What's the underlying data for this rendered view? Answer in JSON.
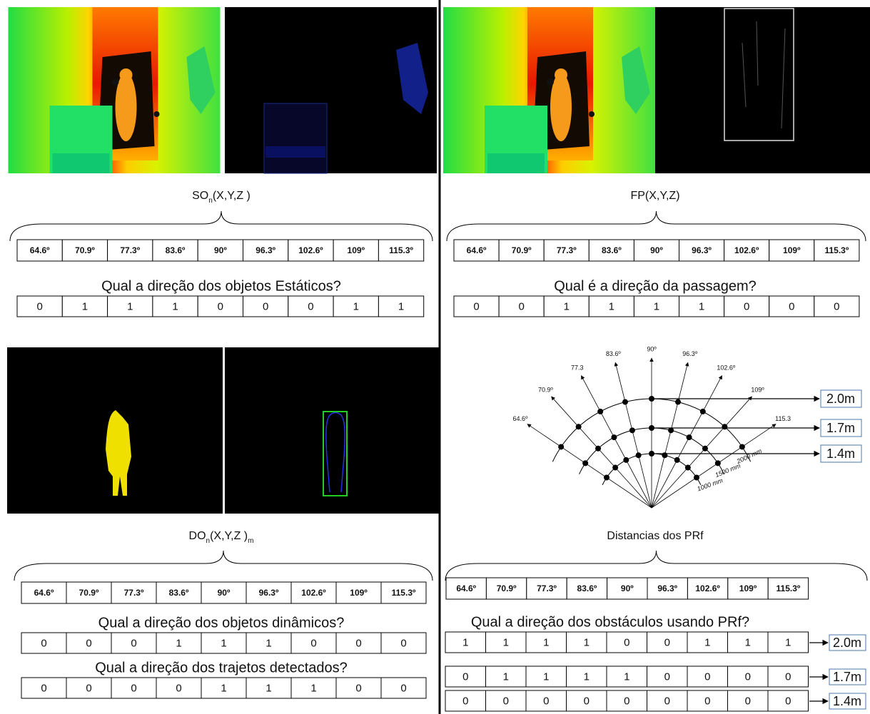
{
  "angles": [
    "64.6º",
    "70.9º",
    "77.3º",
    "83.6º",
    "90º",
    "96.3º",
    "102.6º",
    "109º",
    "115.3º"
  ],
  "top_left": {
    "label": {
      "main": "SO",
      "sub": "n",
      "args": "(X,Y,Z )"
    },
    "question": "Qual a direção dos objetos Estáticos?",
    "answers": [
      0,
      1,
      1,
      1,
      0,
      0,
      0,
      1,
      1
    ]
  },
  "top_right": {
    "label": "FP(X,Y,Z)",
    "question": "Qual  é a direção da passagem?",
    "answers": [
      0,
      0,
      1,
      1,
      1,
      1,
      0,
      0,
      0
    ]
  },
  "bottom_left": {
    "label": {
      "main": "DO",
      "sub": "n",
      "args": "(X,Y,Z )",
      "sub2": "m"
    },
    "questions": [
      {
        "text": "Qual a direção dos objetos dinâmicos?",
        "answers": [
          0,
          0,
          0,
          1,
          1,
          1,
          0,
          0,
          0
        ]
      },
      {
        "text": "Qual a direção dos trajetos detectados?",
        "answers": [
          0,
          0,
          0,
          0,
          1,
          1,
          1,
          0,
          0
        ]
      }
    ]
  },
  "bottom_right": {
    "diagram": {
      "ray_labels": [
        "64.6º",
        "70.9º",
        "77.3",
        "83.6º",
        "90º",
        "96.3º",
        "102.6º",
        "109º",
        "115.3"
      ],
      "distance_labels": [
        "2000 mm",
        "1500 mm",
        "1000 mm"
      ]
    },
    "ranges": [
      "2.0m",
      "1.7m",
      "1.4m"
    ],
    "label": "Distancias dos PRf",
    "question": "Qual a direção dos obstáculos usando PRf?",
    "rows": [
      [
        1,
        1,
        1,
        1,
        0,
        0,
        1,
        1,
        1
      ],
      [
        0,
        1,
        1,
        1,
        1,
        0,
        0,
        0,
        0
      ],
      [
        0,
        0,
        0,
        0,
        0,
        0,
        0,
        0,
        0
      ]
    ]
  }
}
